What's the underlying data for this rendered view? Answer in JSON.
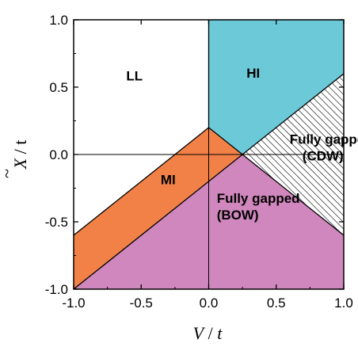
{
  "chart_data": {
    "type": "area",
    "xlabel": {
      "var": "V",
      "sep": " / ",
      "unit": "t"
    },
    "ylabel": {
      "var": "X",
      "sep": " / ",
      "unit": "t"
    },
    "xlim": [
      -1.0,
      1.0
    ],
    "ylim": [
      -1.0,
      1.0
    ],
    "xticks": [
      "-1.0",
      "-0.5",
      "0.0",
      "0.5",
      "1.0"
    ],
    "yticks": [
      "-1.0",
      "-0.5",
      "0.0",
      "0.5",
      "1.0"
    ],
    "grid": false,
    "reference_lines": {
      "x": 0.0,
      "y": 0.0
    },
    "regions": [
      {
        "id": "ll",
        "label": "LL",
        "label_pos": [
          -0.55,
          0.55
        ],
        "fill": "#ffffff",
        "polygon": [
          [
            -1.0,
            -0.6
          ],
          [
            0.0,
            0.2
          ],
          [
            0.0,
            1.0
          ],
          [
            -1.0,
            1.0
          ]
        ]
      },
      {
        "id": "hi",
        "label": "HI",
        "label_pos": [
          0.33,
          0.57
        ],
        "fill": "#6cc9d8",
        "polygon": [
          [
            0.0,
            1.0
          ],
          [
            1.0,
            1.0
          ],
          [
            1.0,
            0.6
          ],
          [
            0.25,
            0.0
          ],
          [
            0.0,
            0.2
          ]
        ]
      },
      {
        "id": "mi",
        "label": "MI",
        "label_pos": [
          -0.3,
          -0.22
        ],
        "fill": "#f28148",
        "polygon": [
          [
            -1.0,
            -1.0
          ],
          [
            0.25,
            0.0
          ],
          [
            0.0,
            0.2
          ],
          [
            -1.0,
            -0.6
          ]
        ]
      },
      {
        "id": "bow",
        "label": "Fully gapped\n(BOW)",
        "label_pos": [
          0.06,
          -0.36
        ],
        "fill": "#d087bd",
        "polygon": [
          [
            -1.0,
            -1.0
          ],
          [
            1.0,
            -1.0
          ],
          [
            1.0,
            -0.6
          ],
          [
            0.25,
            0.0
          ]
        ]
      },
      {
        "id": "cdw",
        "label": "Fully gapped\n(CDW)",
        "label_pos": [
          0.6,
          0.08
        ],
        "fill": "hatched",
        "polygon": [
          [
            0.25,
            0.0
          ],
          [
            1.0,
            0.6
          ],
          [
            1.0,
            -0.6
          ]
        ]
      }
    ],
    "boundary_lines": [
      [
        [
          -1.0,
          -0.6
        ],
        [
          0.0,
          0.2
        ]
      ],
      [
        [
          -1.0,
          -1.0
        ],
        [
          0.25,
          0.0
        ]
      ],
      [
        [
          0.25,
          0.0
        ],
        [
          1.0,
          0.6
        ]
      ],
      [
        [
          0.25,
          0.0
        ],
        [
          1.0,
          -0.6
        ]
      ],
      [
        [
          0.0,
          0.2
        ],
        [
          0.25,
          0.0
        ]
      ],
      [
        [
          0.0,
          0.2
        ],
        [
          0.0,
          1.0
        ]
      ]
    ],
    "colors": {
      "axis": "#000000",
      "hatch": "#000000"
    }
  }
}
